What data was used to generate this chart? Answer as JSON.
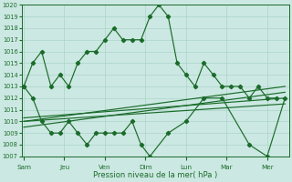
{
  "xlabel": "Pression niveau de la mer( hPa )",
  "bg_color": "#cce8e2",
  "grid_color": "#aad4cc",
  "line_color": "#1a6b2a",
  "ylim": [
    1007,
    1020
  ],
  "yticks": [
    1007,
    1008,
    1009,
    1010,
    1011,
    1012,
    1013,
    1014,
    1015,
    1016,
    1017,
    1018,
    1019,
    1020
  ],
  "x_labels": [
    "Sam",
    "Jeu",
    "Ven",
    "Dim",
    "Lun",
    "Mar",
    "Mer"
  ],
  "x_tick_pos": [
    0,
    1,
    2,
    3,
    4,
    5,
    6
  ],
  "xlim": [
    -0.05,
    6.55
  ],
  "line_high_x": [
    0.0,
    0.22,
    0.44,
    0.67,
    0.89,
    1.11,
    1.33,
    1.56,
    1.78,
    2.0,
    2.22,
    2.44,
    2.67,
    2.89,
    3.11,
    3.33,
    3.56,
    3.78,
    4.0,
    4.22,
    4.44,
    4.67,
    4.89,
    5.11,
    5.33,
    5.56,
    5.78,
    6.0,
    6.22
  ],
  "line_high_y": [
    1013,
    1015,
    1016,
    1013,
    1014,
    1013,
    1015,
    1016,
    1016,
    1017,
    1018,
    1017,
    1017,
    1017,
    1019,
    1020,
    1019,
    1015,
    1014,
    1013,
    1015,
    1014,
    1013,
    1013,
    1013,
    1012,
    1013,
    1012,
    1012
  ],
  "line_low_x": [
    0.0,
    0.22,
    0.44,
    0.67,
    0.89,
    1.11,
    1.33,
    1.56,
    1.78,
    2.0,
    2.22,
    2.44,
    2.67,
    2.89,
    3.11,
    3.56,
    4.0,
    4.44,
    4.89,
    5.56,
    6.0,
    6.44
  ],
  "line_low_y": [
    1013,
    1012,
    1010,
    1009,
    1009,
    1010,
    1009,
    1008,
    1009,
    1009,
    1009,
    1009,
    1010,
    1008,
    1007,
    1009,
    1010,
    1012,
    1012,
    1008,
    1007,
    1012
  ],
  "trend1_x": [
    0.0,
    6.44
  ],
  "trend1_y": [
    1010.0,
    1013.0
  ],
  "trend2_x": [
    0.0,
    6.44
  ],
  "trend2_y": [
    1009.5,
    1012.5
  ],
  "trend3_x": [
    0.0,
    6.44
  ],
  "trend3_y": [
    1010.3,
    1012.0
  ],
  "trend4_x": [
    0.0,
    6.44
  ],
  "trend4_y": [
    1010.0,
    1011.5
  ]
}
